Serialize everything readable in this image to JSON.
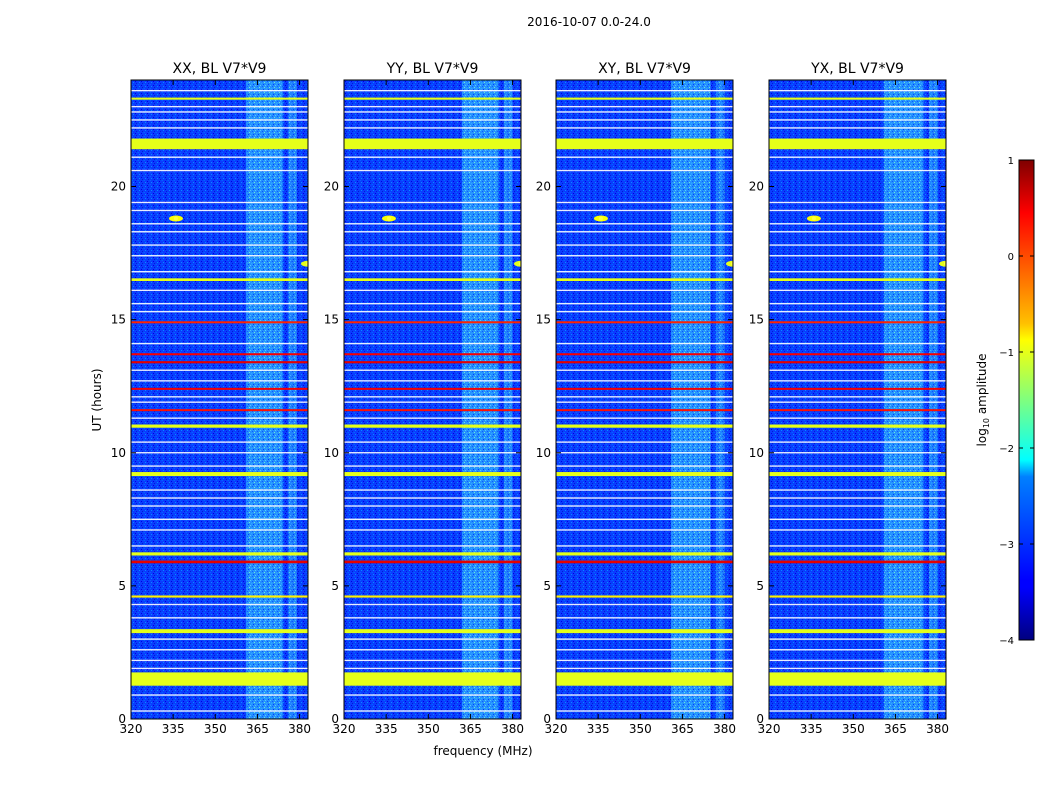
{
  "figure": {
    "suptitle": "2016-10-07 0.0-24.0",
    "ylabel": "UT (hours)",
    "xlabel": "frequency (MHz)",
    "colorbar_label_main": "log",
    "colorbar_label_sub": "10",
    "colorbar_label_tail": " amplitude"
  },
  "chart_data": {
    "type": "heatmap",
    "title": "2016-10-07 0.0-24.0",
    "xlabel": "frequency (MHz)",
    "ylabel": "UT (hours)",
    "xlim": [
      320,
      383
    ],
    "ylim": [
      0,
      24
    ],
    "xticks": [
      320,
      335,
      350,
      365,
      380
    ],
    "yticks": [
      0,
      5,
      10,
      15,
      20
    ],
    "colorbar": {
      "label": "log10 amplitude",
      "range": [
        -4,
        1
      ],
      "ticks": [
        1,
        0,
        -1,
        -2,
        -3,
        -4
      ],
      "tick_labels": [
        "1",
        "0",
        "−1",
        "−2",
        "−3",
        "−4"
      ],
      "colormap": "jet"
    },
    "background_level": -3.2,
    "panels": [
      {
        "title": "XX, BL V7*V9",
        "rfi_band": [
          361,
          374
        ],
        "rfi_band2": [
          376,
          379
        ]
      },
      {
        "title": "YY, BL V7*V9",
        "rfi_band": [
          362,
          375
        ],
        "rfi_band2": [
          377,
          380
        ]
      },
      {
        "title": "XY, BL V7*V9",
        "rfi_band": [
          361,
          375
        ],
        "rfi_band2": [
          377,
          380
        ]
      },
      {
        "title": "YX, BL V7*V9",
        "rfi_band": [
          361,
          375
        ],
        "rfi_band2": [
          377,
          380
        ]
      }
    ],
    "time_flags": [
      {
        "t": 1.5,
        "w": 0.5,
        "level": -1.0
      },
      {
        "t": 3.3,
        "w": 0.15,
        "level": -1.0
      },
      {
        "t": 4.6,
        "w": 0.08,
        "level": -0.8
      },
      {
        "t": 5.9,
        "w": 0.1,
        "level": 0.5
      },
      {
        "t": 6.2,
        "w": 0.12,
        "level": -1.0
      },
      {
        "t": 9.2,
        "w": 0.15,
        "level": -1.0
      },
      {
        "t": 11.0,
        "w": 0.12,
        "level": -1.0
      },
      {
        "t": 11.6,
        "w": 0.06,
        "level": 0.3
      },
      {
        "t": 12.4,
        "w": 0.06,
        "level": 0.4
      },
      {
        "t": 13.4,
        "w": 0.08,
        "level": 0.5
      },
      {
        "t": 13.7,
        "w": 0.06,
        "level": 0.4
      },
      {
        "t": 14.9,
        "w": 0.06,
        "level": 0.2
      },
      {
        "t": 16.5,
        "w": 0.1,
        "level": -1.0
      },
      {
        "t": 21.6,
        "w": 0.4,
        "level": -1.0
      },
      {
        "t": 23.3,
        "w": 0.08,
        "level": -1.0
      }
    ],
    "thin_flags": [
      0.3,
      0.9,
      1.9,
      2.2,
      2.6,
      3.0,
      3.8,
      4.3,
      6.5,
      7.1,
      7.5,
      8.0,
      8.3,
      8.6,
      9.5,
      10.0,
      10.4,
      11.3,
      11.9,
      12.1,
      12.7,
      13.1,
      14.1,
      15.3,
      15.6,
      16.1,
      16.8,
      17.4,
      17.8,
      18.3,
      18.6,
      19.1,
      19.4,
      20.6,
      21.1,
      22.2,
      22.5,
      22.8,
      23.0,
      23.6
    ],
    "sources": [
      {
        "freq": 336,
        "t": 18.8,
        "level": -0.9
      },
      {
        "freq": 383,
        "t": 17.1,
        "level": -1.0
      }
    ]
  }
}
